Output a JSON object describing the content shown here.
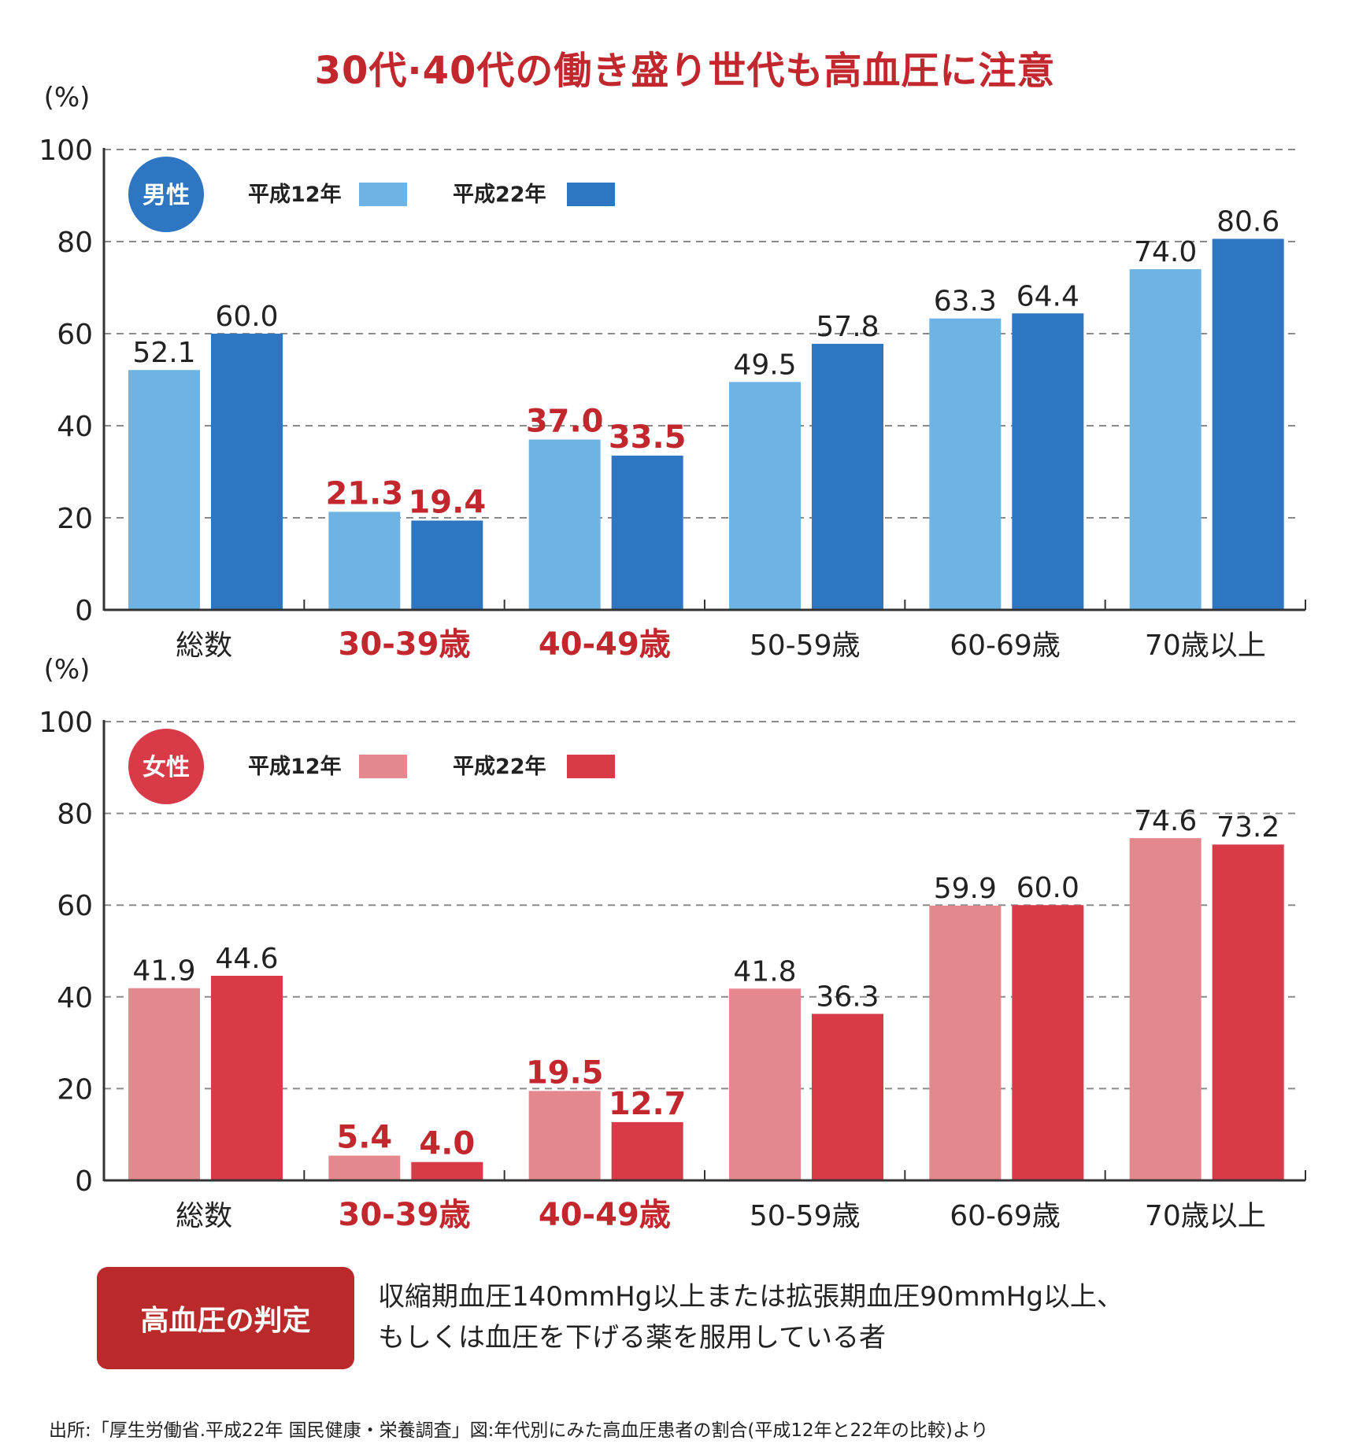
{
  "title": "30代·40代の働き盛り世代も高血圧に注意",
  "colors": {
    "title_red": "#c1272d",
    "male_h12": "#6db4e4",
    "male_h22": "#2f76c2",
    "male_badge": "#2f76c2",
    "female_h12": "#e5888e",
    "female_h22": "#d83a48",
    "female_badge": "#d83a48",
    "highlight_label": "#c1272d",
    "criteria_box": "#bb2a2b"
  },
  "chart_data": [
    {
      "type": "bar",
      "title": "男性",
      "badge": "男性",
      "ylabel": "(%)",
      "xlabel": "",
      "ylim": [
        0,
        100
      ],
      "yticks": [
        0,
        20,
        40,
        60,
        80,
        100
      ],
      "grid": true,
      "legend_position": "top-left",
      "categories": [
        "総数",
        "30-39歳",
        "40-49歳",
        "50-59歳",
        "60-69歳",
        "70歳以上"
      ],
      "highlighted_categories": [
        "30-39歳",
        "40-49歳"
      ],
      "series": [
        {
          "name": "平成12年",
          "values": [
            52.1,
            21.3,
            37.0,
            49.5,
            63.3,
            74.0
          ],
          "labels": [
            "52.1",
            "21.3",
            "37.0",
            "49.5",
            "63.3",
            "74.0"
          ]
        },
        {
          "name": "平成22年",
          "values": [
            60.0,
            19.4,
            33.5,
            57.8,
            64.4,
            80.6
          ],
          "labels": [
            "60.0",
            "19.4",
            "33.5",
            "57.8",
            "64.4",
            "80.6"
          ]
        }
      ]
    },
    {
      "type": "bar",
      "title": "女性",
      "badge": "女性",
      "ylabel": "(%)",
      "xlabel": "",
      "ylim": [
        0,
        100
      ],
      "yticks": [
        0,
        20,
        40,
        60,
        80,
        100
      ],
      "grid": true,
      "legend_position": "top-left",
      "categories": [
        "総数",
        "30-39歳",
        "40-49歳",
        "50-59歳",
        "60-69歳",
        "70歳以上"
      ],
      "highlighted_categories": [
        "30-39歳",
        "40-49歳"
      ],
      "series": [
        {
          "name": "平成12年",
          "values": [
            41.9,
            5.4,
            19.5,
            41.8,
            59.9,
            74.6
          ],
          "labels": [
            "41.9",
            "5.4",
            "19.5",
            "41.8",
            "59.9",
            "74.6"
          ]
        },
        {
          "name": "平成22年",
          "values": [
            44.6,
            4.0,
            12.7,
            36.3,
            60.0,
            73.2
          ],
          "labels": [
            "44.6",
            "4.0",
            "12.7",
            "36.3",
            "60.0",
            "73.2"
          ]
        }
      ]
    }
  ],
  "criteria": {
    "label": "高血圧の判定",
    "line1": "収縮期血圧140mmHg以上または拡張期血圧90mmHg以上、",
    "line2": "もしくは血圧を下げる薬を服用している者"
  },
  "source": "出所:「厚生労働省.平成22年 国民健康・栄養調査」図:年代別にみた高血圧患者の割合(平成12年と22年の比較)より"
}
